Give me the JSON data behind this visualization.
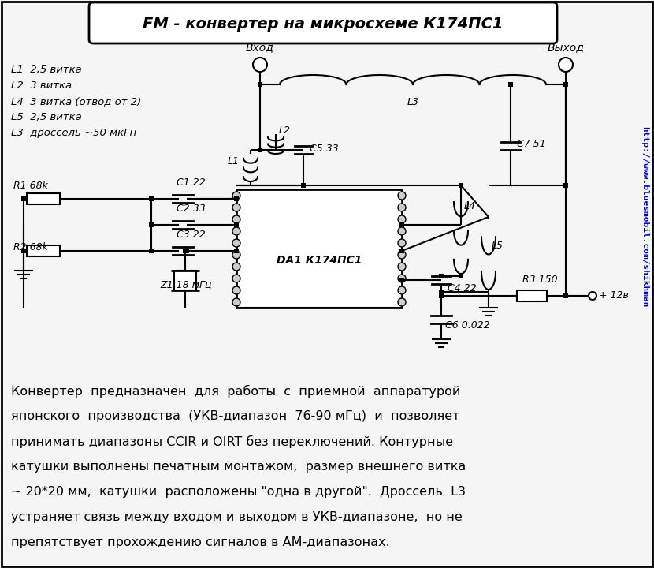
{
  "title": "FM - конвертер на микросхеме К174ПС1",
  "bg_color": "#f5f5f5",
  "sidebar_color": "#0000cc",
  "sidebar_text": "http://www.bluesmobil.com/shikhman",
  "legend_lines": [
    "L1  2,5 витка",
    "L2  3 витка",
    "L4  3 витка (отвод от 2)",
    "L5  2,5 витка",
    "L3  дроссель ~50 мкГн"
  ],
  "description_lines": [
    "Конвертер  предназначен  для  работы  с  приемной  аппаратурой",
    "японского  производства  (УКВ-диапазон  76-90 мГц)  и  позволяет",
    "принимать диапазоны CCIR и OIRT без переключений. Контурные",
    "катушки выполнены печатным монтажом,  размер внешнего витка",
    "~ 20*20 мм,  катушки  расположены \"одна в другой\".  Дроссель  L3",
    "устраняет связь между входом и выходом в УКВ-диапазоне,  но не",
    "препятствует прохождению сигналов в АМ-диапазонах."
  ]
}
